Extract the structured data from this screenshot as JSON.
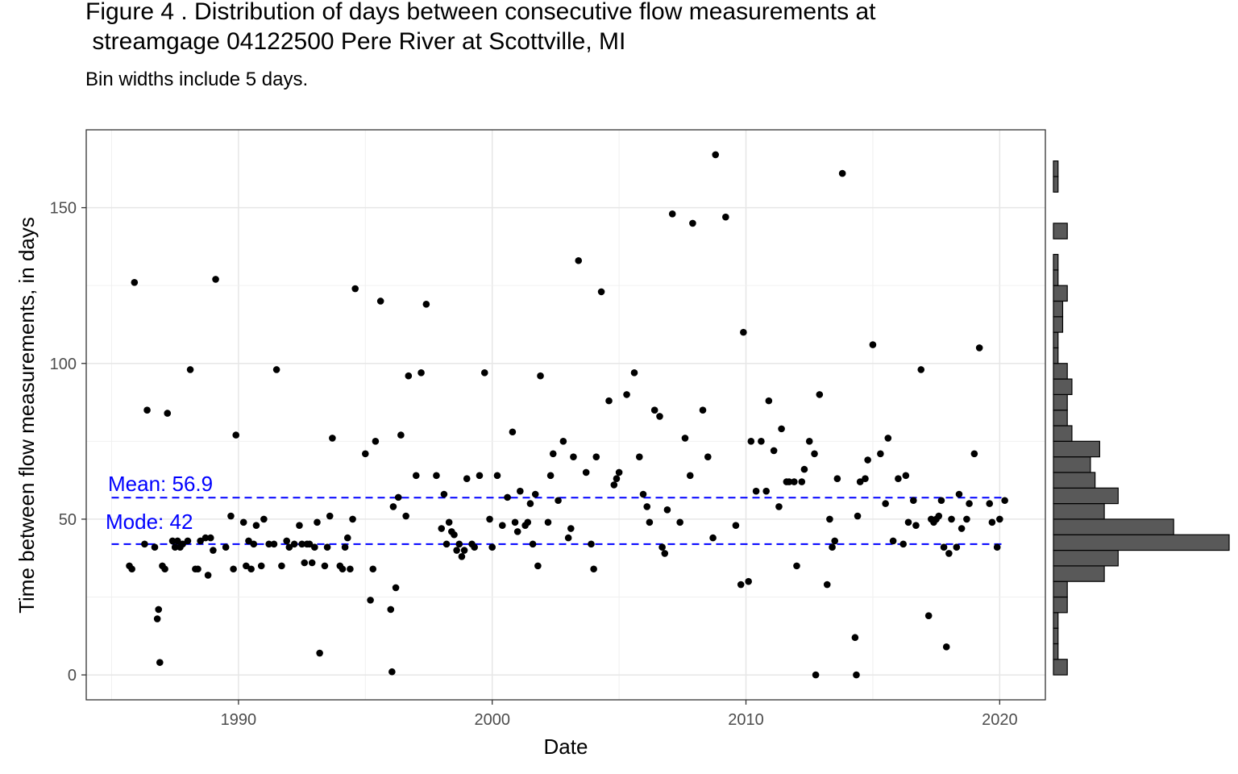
{
  "chart_data": {
    "type": "scatter",
    "title": "Figure 4 . Distribution of days between consecutive flow measurements at\n streamgage 04122500 Pere River at Scottville, MI",
    "subtitle": "Bin widths include 5 days.",
    "xlabel": "Date",
    "ylabel": "Time between flow measurements, in days",
    "xlim": [
      1984.0,
      2021.8
    ],
    "ylim": [
      -8,
      175
    ],
    "x_ticks": [
      "1990",
      "2000",
      "2010",
      "2020"
    ],
    "x_tick_values": [
      1990,
      2000,
      2010,
      2020
    ],
    "y_ticks": [
      "0",
      "50",
      "100",
      "150"
    ],
    "y_tick_values": [
      0,
      50,
      100,
      150
    ],
    "grid": true,
    "reference_lines": [
      {
        "label": "Mean: 56.9",
        "value": 56.9,
        "color": "#0000ff",
        "style": "dashed"
      },
      {
        "label": "Mode: 42",
        "value": 42,
        "color": "#0000ff",
        "style": "dashed"
      }
    ],
    "points": [
      [
        1985.7,
        35
      ],
      [
        1985.8,
        34
      ],
      [
        1985.9,
        126
      ],
      [
        1986.3,
        42
      ],
      [
        1986.4,
        85
      ],
      [
        1986.7,
        41
      ],
      [
        1986.8,
        18
      ],
      [
        1986.85,
        21
      ],
      [
        1986.9,
        4
      ],
      [
        1987.0,
        35
      ],
      [
        1987.1,
        34
      ],
      [
        1987.2,
        84
      ],
      [
        1987.4,
        43
      ],
      [
        1987.5,
        41
      ],
      [
        1987.6,
        43
      ],
      [
        1987.7,
        41
      ],
      [
        1987.8,
        42
      ],
      [
        1988.0,
        43
      ],
      [
        1988.1,
        98
      ],
      [
        1988.3,
        34
      ],
      [
        1988.4,
        34
      ],
      [
        1988.5,
        43
      ],
      [
        1988.7,
        44
      ],
      [
        1988.8,
        32
      ],
      [
        1988.9,
        44
      ],
      [
        1989.0,
        40
      ],
      [
        1989.1,
        127
      ],
      [
        1989.5,
        41
      ],
      [
        1989.7,
        51
      ],
      [
        1989.8,
        34
      ],
      [
        1989.9,
        77
      ],
      [
        1990.2,
        49
      ],
      [
        1990.3,
        35
      ],
      [
        1990.4,
        43
      ],
      [
        1990.5,
        34
      ],
      [
        1990.6,
        42
      ],
      [
        1990.7,
        48
      ],
      [
        1990.9,
        35
      ],
      [
        1991.0,
        50
      ],
      [
        1991.2,
        42
      ],
      [
        1991.4,
        42
      ],
      [
        1991.5,
        98
      ],
      [
        1991.7,
        35
      ],
      [
        1991.9,
        43
      ],
      [
        1992.0,
        41
      ],
      [
        1992.2,
        42
      ],
      [
        1992.4,
        48
      ],
      [
        1992.5,
        42
      ],
      [
        1992.6,
        36
      ],
      [
        1992.7,
        42
      ],
      [
        1992.8,
        42
      ],
      [
        1992.9,
        36
      ],
      [
        1993.0,
        41
      ],
      [
        1993.1,
        49
      ],
      [
        1993.2,
        7
      ],
      [
        1993.4,
        35
      ],
      [
        1993.5,
        41
      ],
      [
        1993.6,
        51
      ],
      [
        1993.7,
        76
      ],
      [
        1994.0,
        35
      ],
      [
        1994.1,
        34
      ],
      [
        1994.2,
        41
      ],
      [
        1994.3,
        44
      ],
      [
        1994.4,
        34
      ],
      [
        1994.5,
        50
      ],
      [
        1994.6,
        124
      ],
      [
        1995.0,
        71
      ],
      [
        1995.2,
        24
      ],
      [
        1995.3,
        34
      ],
      [
        1995.4,
        75
      ],
      [
        1995.6,
        120
      ],
      [
        1996.0,
        21
      ],
      [
        1996.05,
        1
      ],
      [
        1996.1,
        54
      ],
      [
        1996.2,
        28
      ],
      [
        1996.3,
        57
      ],
      [
        1996.4,
        77
      ],
      [
        1996.6,
        51
      ],
      [
        1996.7,
        96
      ],
      [
        1997.0,
        64
      ],
      [
        1997.2,
        97
      ],
      [
        1997.4,
        119
      ],
      [
        1997.8,
        64
      ],
      [
        1998.0,
        47
      ],
      [
        1998.1,
        58
      ],
      [
        1998.2,
        42
      ],
      [
        1998.3,
        49
      ],
      [
        1998.4,
        46
      ],
      [
        1998.5,
        45
      ],
      [
        1998.6,
        40
      ],
      [
        1998.7,
        42
      ],
      [
        1998.8,
        38
      ],
      [
        1998.9,
        40
      ],
      [
        1999.0,
        63
      ],
      [
        1999.2,
        42
      ],
      [
        1999.3,
        41
      ],
      [
        1999.5,
        64
      ],
      [
        1999.7,
        97
      ],
      [
        1999.9,
        50
      ],
      [
        2000.0,
        41
      ],
      [
        2000.2,
        64
      ],
      [
        2000.4,
        48
      ],
      [
        2000.6,
        57
      ],
      [
        2000.8,
        78
      ],
      [
        2000.9,
        49
      ],
      [
        2001.0,
        46
      ],
      [
        2001.1,
        59
      ],
      [
        2001.3,
        48
      ],
      [
        2001.4,
        49
      ],
      [
        2001.5,
        55
      ],
      [
        2001.6,
        42
      ],
      [
        2001.7,
        58
      ],
      [
        2001.8,
        35
      ],
      [
        2001.9,
        96
      ],
      [
        2002.2,
        49
      ],
      [
        2002.3,
        64
      ],
      [
        2002.4,
        71
      ],
      [
        2002.6,
        56
      ],
      [
        2002.8,
        75
      ],
      [
        2003.0,
        44
      ],
      [
        2003.1,
        47
      ],
      [
        2003.2,
        70
      ],
      [
        2003.4,
        133
      ],
      [
        2003.7,
        65
      ],
      [
        2003.9,
        42
      ],
      [
        2004.0,
        34
      ],
      [
        2004.1,
        70
      ],
      [
        2004.3,
        123
      ],
      [
        2004.6,
        88
      ],
      [
        2004.8,
        61
      ],
      [
        2004.9,
        63
      ],
      [
        2005.0,
        65
      ],
      [
        2005.3,
        90
      ],
      [
        2005.6,
        97
      ],
      [
        2005.8,
        70
      ],
      [
        2005.95,
        58
      ],
      [
        2006.1,
        54
      ],
      [
        2006.2,
        49
      ],
      [
        2006.4,
        85
      ],
      [
        2006.6,
        83
      ],
      [
        2006.7,
        41
      ],
      [
        2006.8,
        39
      ],
      [
        2006.9,
        53
      ],
      [
        2007.1,
        148
      ],
      [
        2007.4,
        49
      ],
      [
        2007.6,
        76
      ],
      [
        2007.8,
        64
      ],
      [
        2007.9,
        145
      ],
      [
        2008.3,
        85
      ],
      [
        2008.5,
        70
      ],
      [
        2008.7,
        44
      ],
      [
        2008.8,
        167
      ],
      [
        2009.2,
        147
      ],
      [
        2009.6,
        48
      ],
      [
        2009.8,
        29
      ],
      [
        2009.9,
        110
      ],
      [
        2010.1,
        30
      ],
      [
        2010.2,
        75
      ],
      [
        2010.4,
        59
      ],
      [
        2010.6,
        75
      ],
      [
        2010.8,
        59
      ],
      [
        2010.9,
        88
      ],
      [
        2011.1,
        72
      ],
      [
        2011.3,
        54
      ],
      [
        2011.4,
        79
      ],
      [
        2011.6,
        62
      ],
      [
        2011.7,
        62
      ],
      [
        2011.9,
        62
      ],
      [
        2012.0,
        35
      ],
      [
        2012.2,
        62
      ],
      [
        2012.3,
        66
      ],
      [
        2012.5,
        75
      ],
      [
        2012.7,
        71
      ],
      [
        2012.75,
        0
      ],
      [
        2012.9,
        90
      ],
      [
        2013.2,
        29
      ],
      [
        2013.3,
        50
      ],
      [
        2013.4,
        41
      ],
      [
        2013.5,
        43
      ],
      [
        2013.6,
        63
      ],
      [
        2013.8,
        161
      ],
      [
        2014.3,
        12
      ],
      [
        2014.35,
        0
      ],
      [
        2014.4,
        51
      ],
      [
        2014.5,
        62
      ],
      [
        2014.7,
        63
      ],
      [
        2014.8,
        69
      ],
      [
        2015.0,
        106
      ],
      [
        2015.3,
        71
      ],
      [
        2015.5,
        55
      ],
      [
        2015.6,
        76
      ],
      [
        2015.8,
        43
      ],
      [
        2016.0,
        63
      ],
      [
        2016.2,
        42
      ],
      [
        2016.3,
        64
      ],
      [
        2016.4,
        49
      ],
      [
        2016.6,
        56
      ],
      [
        2016.7,
        48
      ],
      [
        2016.9,
        98
      ],
      [
        2017.2,
        19
      ],
      [
        2017.3,
        50
      ],
      [
        2017.4,
        49
      ],
      [
        2017.5,
        50
      ],
      [
        2017.6,
        51
      ],
      [
        2017.7,
        56
      ],
      [
        2017.8,
        41
      ],
      [
        2017.9,
        9
      ],
      [
        2018.0,
        39
      ],
      [
        2018.1,
        50
      ],
      [
        2018.3,
        41
      ],
      [
        2018.4,
        58
      ],
      [
        2018.5,
        47
      ],
      [
        2018.7,
        50
      ],
      [
        2018.8,
        55
      ],
      [
        2019.0,
        71
      ],
      [
        2019.2,
        105
      ],
      [
        2019.6,
        55
      ],
      [
        2019.7,
        49
      ],
      [
        2019.9,
        41
      ],
      [
        2020.0,
        50
      ],
      [
        2020.2,
        56
      ]
    ],
    "histogram": {
      "bin_width": 5,
      "bins": [
        {
          "range": [
            0,
            5
          ],
          "count": 3
        },
        {
          "range": [
            5,
            10
          ],
          "count": 1
        },
        {
          "range": [
            10,
            15
          ],
          "count": 1
        },
        {
          "range": [
            15,
            20
          ],
          "count": 1
        },
        {
          "range": [
            20,
            25
          ],
          "count": 3
        },
        {
          "range": [
            25,
            30
          ],
          "count": 3
        },
        {
          "range": [
            30,
            35
          ],
          "count": 11
        },
        {
          "range": [
            35,
            40
          ],
          "count": 14
        },
        {
          "range": [
            40,
            45
          ],
          "count": 38
        },
        {
          "range": [
            45,
            50
          ],
          "count": 26
        },
        {
          "range": [
            50,
            55
          ],
          "count": 11
        },
        {
          "range": [
            55,
            60
          ],
          "count": 14
        },
        {
          "range": [
            60,
            65
          ],
          "count": 9
        },
        {
          "range": [
            65,
            70
          ],
          "count": 8
        },
        {
          "range": [
            70,
            75
          ],
          "count": 10
        },
        {
          "range": [
            75,
            80
          ],
          "count": 4
        },
        {
          "range": [
            80,
            85
          ],
          "count": 3
        },
        {
          "range": [
            85,
            90
          ],
          "count": 3
        },
        {
          "range": [
            90,
            95
          ],
          "count": 4
        },
        {
          "range": [
            95,
            100
          ],
          "count": 3
        },
        {
          "range": [
            100,
            105
          ],
          "count": 1
        },
        {
          "range": [
            105,
            110
          ],
          "count": 1
        },
        {
          "range": [
            110,
            115
          ],
          "count": 2
        },
        {
          "range": [
            115,
            120
          ],
          "count": 2
        },
        {
          "range": [
            120,
            125
          ],
          "count": 3
        },
        {
          "range": [
            125,
            130
          ],
          "count": 1
        },
        {
          "range": [
            130,
            135
          ],
          "count": 1
        },
        {
          "range": [
            140,
            145
          ],
          "count": 3
        },
        {
          "range": [
            155,
            160
          ],
          "count": 1
        },
        {
          "range": [
            160,
            165
          ],
          "count": 1
        }
      ]
    }
  }
}
